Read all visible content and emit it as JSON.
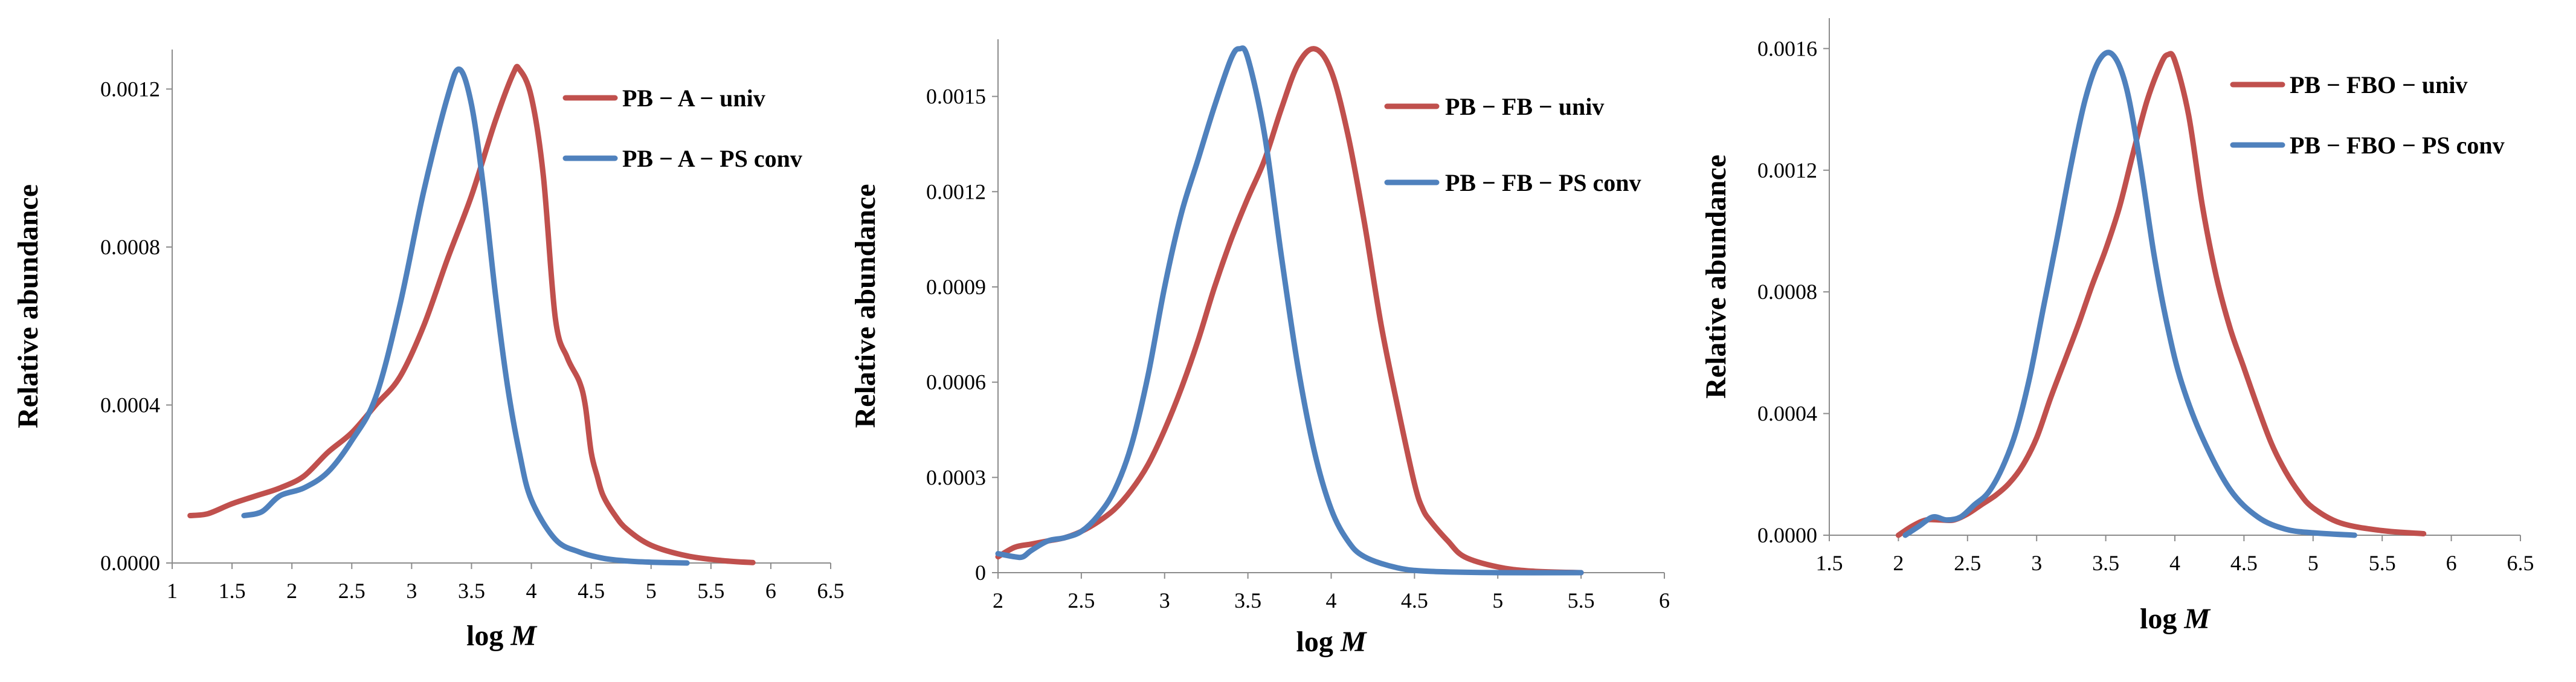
{
  "colors": {
    "univ": "#c0504d",
    "psconv": "#4f81bd",
    "axis": "#8c8c8c"
  },
  "chart_data": [
    {
      "type": "line",
      "title": "",
      "xlabel": {
        "prefix": "log ",
        "var": "M"
      },
      "ylabel": "Relative abundance",
      "xlim": [
        1,
        6.5
      ],
      "ylim": [
        0,
        0.0013
      ],
      "x_ticks": [
        {
          "v": 1,
          "label": "1"
        },
        {
          "v": 1.5,
          "label": "1.5"
        },
        {
          "v": 2,
          "label": "2"
        },
        {
          "v": 2.5,
          "label": "2.5"
        },
        {
          "v": 3,
          "label": "3"
        },
        {
          "v": 3.5,
          "label": "3.5"
        },
        {
          "v": 4,
          "label": "4"
        },
        {
          "v": 4.5,
          "label": "4.5"
        },
        {
          "v": 5,
          "label": "5"
        },
        {
          "v": 5.5,
          "label": "5.5"
        },
        {
          "v": 6,
          "label": "6"
        },
        {
          "v": 6.5,
          "label": "6.5"
        }
      ],
      "y_ticks": [
        {
          "v": 0,
          "label": "0.0000"
        },
        {
          "v": 0.0004,
          "label": "0.0004"
        },
        {
          "v": 0.0008,
          "label": "0.0008"
        },
        {
          "v": 0.0012,
          "label": "0.0012"
        }
      ],
      "legend_position": "top-right",
      "series": [
        {
          "name": "PB − A − univ",
          "color_key": "univ",
          "x": [
            1.15,
            1.3,
            1.5,
            1.7,
            1.9,
            2.1,
            2.3,
            2.5,
            2.7,
            2.9,
            3.1,
            3.3,
            3.5,
            3.7,
            3.85,
            3.9,
            4.0,
            4.1,
            4.2,
            4.3,
            4.4,
            4.45,
            4.5,
            4.55,
            4.6,
            4.7,
            4.8,
            5.0,
            5.3,
            5.6,
            5.85
          ],
          "y": [
            0.00012,
            0.000125,
            0.00015,
            0.00017,
            0.00019,
            0.00022,
            0.00028,
            0.00033,
            0.0004,
            0.00047,
            0.0006,
            0.00077,
            0.00093,
            0.00112,
            0.00124,
            0.00125,
            0.00118,
            0.00098,
            0.00062,
            0.00052,
            0.00046,
            0.0004,
            0.00028,
            0.00022,
            0.00017,
            0.00012,
            8.5e-05,
            4.5e-05,
            1.8e-05,
            6e-06,
            1e-06
          ]
        },
        {
          "name": "PB − A − PS conv",
          "color_key": "psconv",
          "x": [
            1.6,
            1.75,
            1.9,
            2.1,
            2.3,
            2.5,
            2.7,
            2.9,
            3.1,
            3.3,
            3.4,
            3.5,
            3.6,
            3.7,
            3.8,
            3.9,
            4.0,
            4.2,
            4.4,
            4.6,
            4.8,
            5.0,
            5.3
          ],
          "y": [
            0.00012,
            0.00013,
            0.00017,
            0.00019,
            0.00023,
            0.00031,
            0.00042,
            0.00065,
            0.00094,
            0.00118,
            0.00125,
            0.00116,
            0.00095,
            0.00068,
            0.00045,
            0.00028,
            0.00016,
            6e-05,
            2.8e-05,
            1.2e-05,
            5e-06,
            2e-06,
            0.0
          ]
        }
      ]
    },
    {
      "type": "line",
      "title": "",
      "xlabel": {
        "prefix": "log ",
        "var": "M"
      },
      "ylabel": "Relative abundance",
      "xlim": [
        2,
        6
      ],
      "ylim": [
        0,
        0.00168
      ],
      "x_ticks": [
        {
          "v": 2,
          "label": "2"
        },
        {
          "v": 2.5,
          "label": "2.5"
        },
        {
          "v": 3,
          "label": "3"
        },
        {
          "v": 3.5,
          "label": "3.5"
        },
        {
          "v": 4,
          "label": "4"
        },
        {
          "v": 4.5,
          "label": "4.5"
        },
        {
          "v": 5,
          "label": "5"
        },
        {
          "v": 5.5,
          "label": "5.5"
        },
        {
          "v": 6,
          "label": "6"
        }
      ],
      "y_ticks": [
        {
          "v": 0,
          "label": "0"
        },
        {
          "v": 0.0003,
          "label": "0.0003"
        },
        {
          "v": 0.0006,
          "label": "0.0006"
        },
        {
          "v": 0.0009,
          "label": "0.0009"
        },
        {
          "v": 0.0012,
          "label": "0.0012"
        },
        {
          "v": 0.0015,
          "label": "0.0015"
        }
      ],
      "legend_position": "top-right",
      "series": [
        {
          "name": "PB − FB − univ",
          "color_key": "univ",
          "x": [
            2.0,
            2.1,
            2.2,
            2.3,
            2.4,
            2.5,
            2.6,
            2.7,
            2.8,
            2.9,
            3.0,
            3.1,
            3.2,
            3.3,
            3.4,
            3.5,
            3.6,
            3.7,
            3.8,
            3.9,
            4.0,
            4.1,
            4.2,
            4.3,
            4.4,
            4.5,
            4.55,
            4.6,
            4.7,
            4.8,
            5.0,
            5.2,
            5.5
          ],
          "y": [
            5e-05,
            8e-05,
            9e-05,
            0.0001,
            0.00011,
            0.00013,
            0.00016,
            0.0002,
            0.00026,
            0.00034,
            0.00045,
            0.00058,
            0.00073,
            0.0009,
            0.00105,
            0.00118,
            0.0013,
            0.00146,
            0.0016,
            0.00165,
            0.00158,
            0.00138,
            0.0011,
            0.00078,
            0.00052,
            0.00028,
            0.0002,
            0.00016,
            0.0001,
            5e-05,
            1.8e-05,
            5e-06,
            0.0
          ]
        },
        {
          "name": "PB − FB − PS conv",
          "color_key": "psconv",
          "x": [
            2.0,
            2.1,
            2.15,
            2.2,
            2.3,
            2.4,
            2.5,
            2.6,
            2.7,
            2.8,
            2.9,
            3.0,
            3.1,
            3.2,
            3.3,
            3.4,
            3.45,
            3.5,
            3.6,
            3.7,
            3.8,
            3.9,
            4.0,
            4.1,
            4.2,
            4.4,
            4.6,
            5.0,
            5.5
          ],
          "y": [
            6e-05,
            5e-05,
            5e-05,
            7e-05,
            0.0001,
            0.00011,
            0.00013,
            0.00018,
            0.00026,
            0.0004,
            0.00062,
            0.0009,
            0.00113,
            0.0013,
            0.00147,
            0.00162,
            0.00165,
            0.00162,
            0.00138,
            0.001,
            0.00065,
            0.00038,
            0.0002,
            0.0001,
            5e-05,
            1.5e-05,
            4e-06,
            0.0,
            0.0
          ]
        }
      ]
    },
    {
      "type": "line",
      "title": "",
      "xlabel": {
        "prefix": "log ",
        "var": "M"
      },
      "ylabel": "Relative abundance",
      "xlim": [
        1.5,
        6.5
      ],
      "ylim": [
        0,
        0.0017
      ],
      "x_ticks": [
        {
          "v": 1.5,
          "label": "1.5"
        },
        {
          "v": 2,
          "label": "2"
        },
        {
          "v": 2.5,
          "label": "2.5"
        },
        {
          "v": 3,
          "label": "3"
        },
        {
          "v": 3.5,
          "label": "3.5"
        },
        {
          "v": 4,
          "label": "4"
        },
        {
          "v": 4.5,
          "label": "4.5"
        },
        {
          "v": 5,
          "label": "5"
        },
        {
          "v": 5.5,
          "label": "5.5"
        },
        {
          "v": 6,
          "label": "6"
        },
        {
          "v": 6.5,
          "label": "6.5"
        }
      ],
      "y_ticks": [
        {
          "v": 0,
          "label": "0.0000"
        },
        {
          "v": 0.0004,
          "label": "0.0004"
        },
        {
          "v": 0.0008,
          "label": "0.0008"
        },
        {
          "v": 0.0012,
          "label": "0.0012"
        },
        {
          "v": 0.0016,
          "label": "0.0016"
        }
      ],
      "legend_position": "top-right",
      "series": [
        {
          "name": "PB − FBO − univ",
          "color_key": "univ",
          "x": [
            2.0,
            2.1,
            2.2,
            2.3,
            2.4,
            2.5,
            2.6,
            2.7,
            2.8,
            2.9,
            3.0,
            3.1,
            3.2,
            3.3,
            3.4,
            3.5,
            3.6,
            3.7,
            3.8,
            3.9,
            3.95,
            4.0,
            4.1,
            4.2,
            4.3,
            4.4,
            4.5,
            4.6,
            4.7,
            4.8,
            4.9,
            5.0,
            5.2,
            5.5,
            5.8
          ],
          "y": [
            0.0,
            3e-05,
            5e-05,
            5e-05,
            5e-05,
            7e-05,
            0.0001,
            0.00013,
            0.00017,
            0.00023,
            0.00032,
            0.00045,
            0.00057,
            0.00069,
            0.00082,
            0.00094,
            0.00108,
            0.00126,
            0.00143,
            0.00155,
            0.00158,
            0.00156,
            0.00138,
            0.00108,
            0.00085,
            0.00068,
            0.00055,
            0.00042,
            0.0003,
            0.00021,
            0.00014,
            9e-05,
            4e-05,
            1.5e-05,
            5e-06
          ]
        },
        {
          "name": "PB − FBO − PS conv",
          "color_key": "psconv",
          "x": [
            2.05,
            2.15,
            2.25,
            2.35,
            2.45,
            2.55,
            2.65,
            2.75,
            2.85,
            2.95,
            3.05,
            3.15,
            3.25,
            3.35,
            3.45,
            3.55,
            3.65,
            3.75,
            3.85,
            3.95,
            4.05,
            4.2,
            4.4,
            4.6,
            4.8,
            5.0,
            5.3
          ],
          "y": [
            0.0,
            3e-05,
            6e-05,
            5e-05,
            6e-05,
            0.0001,
            0.00014,
            0.00022,
            0.00034,
            0.00052,
            0.00075,
            0.00098,
            0.00122,
            0.00143,
            0.00156,
            0.00158,
            0.00147,
            0.00122,
            0.00092,
            0.00068,
            0.0005,
            0.00032,
            0.00015,
            6e-05,
            2e-05,
            8e-06,
            0.0
          ]
        }
      ]
    }
  ]
}
